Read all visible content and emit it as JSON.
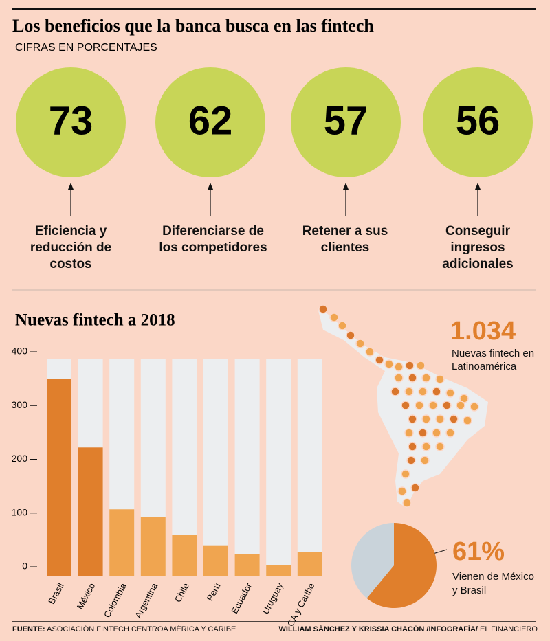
{
  "header": {
    "title": "Los beneficios que la banca busca en las fintech",
    "subtitle": "CIFRAS EN PORCENTAJES"
  },
  "benefits": [
    {
      "value": 73,
      "label": "Eficiencia y reducción de costos"
    },
    {
      "value": 62,
      "label": "Diferenciarse de los competidores"
    },
    {
      "value": 57,
      "label": "Retener a sus clientes"
    },
    {
      "value": 56,
      "label": "Conseguir ingresos adicionales"
    }
  ],
  "chart_data": [
    {
      "type": "bar",
      "title": "Nuevas fintech a 2018",
      "categories": [
        "Brasil",
        "México",
        "Colombia",
        "Argentina",
        "Chile",
        "Perú",
        "Ecuador",
        "Uruguay",
        "CA y Caribe"
      ],
      "values": [
        349,
        222,
        107,
        93,
        59,
        40,
        23,
        3,
        27
      ],
      "colors": [
        "#e07f2c",
        "#e07f2c",
        "#f0a550",
        "#f0a550",
        "#f0a550",
        "#f0a550",
        "#f0a550",
        "#f0a550",
        "#f0a550"
      ],
      "background_color": "#eceef0",
      "ylim": [
        0,
        400
      ],
      "yticks": [
        0,
        100,
        200,
        300,
        400
      ]
    },
    {
      "type": "pie",
      "values": [
        61,
        39
      ],
      "value_labels": [
        "61%",
        null
      ],
      "colors": [
        "#e07f2c",
        "#c9d3da"
      ],
      "caption": "Vienen de México y Brasil"
    }
  ],
  "stat": {
    "value": 1034,
    "value_label": "1.034",
    "label": "Nuevas fintech en Latinoamérica"
  },
  "footer": {
    "source_label": "FUENTE:",
    "source": "ASOCIACIÓN FINTECH CENTROA MÉRICA Y CARIBE",
    "authors": "WILLIAM SÁNCHEZ Y KRISSIA  CHACÓN /INFOGRAFÍA/",
    "outlet": "EL FINANCIERO"
  }
}
